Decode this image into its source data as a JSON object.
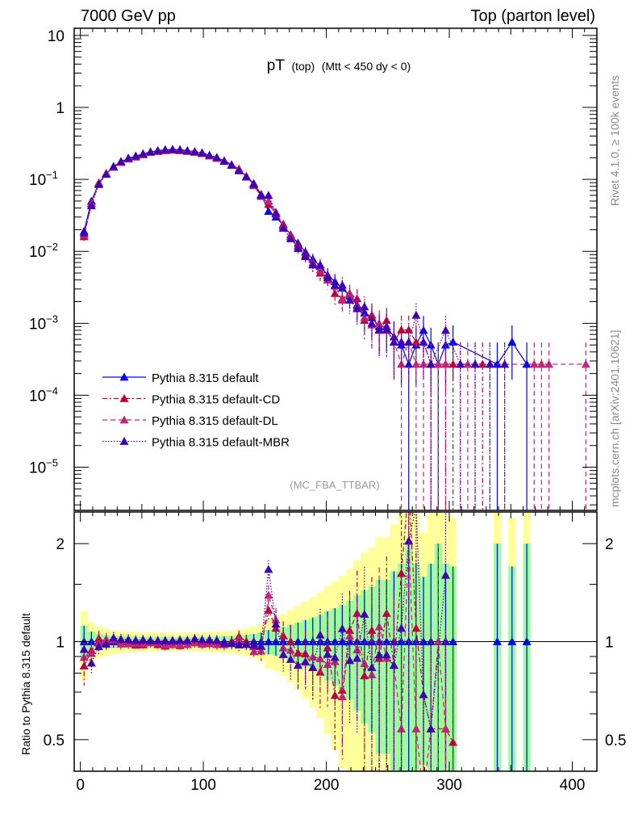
{
  "chart_data": {
    "type": "scatter",
    "header_left": "7000 GeV pp",
    "header_right": "Top (parton level)",
    "title_main": "pT",
    "title_sub": "(top)",
    "title_cut": "(Mtt < 450 dy < 0)",
    "analysis": "(MC_FBA_TTBAR)",
    "side_top": "Rivet 4.1.0, ≥ 100k events",
    "side_bottom": "mcplots.cern.ch [arXiv:2401.10621]",
    "ratio_ylabel": "Ratio to Pythia 8.315 default",
    "xlim": [
      -5,
      420
    ],
    "ylim_log": [
      -5.6,
      1.1
    ],
    "ratio_ylim": [
      0.4,
      2.5
    ],
    "x_ticks": [
      "0",
      "100",
      "200",
      "300",
      "400"
    ],
    "x_tick_values": [
      0,
      100,
      200,
      300,
      400
    ],
    "y_ticks": [
      {
        "v": 1,
        "b": "10",
        "e": ""
      },
      {
        "v": 0,
        "b": "1",
        "e": ""
      },
      {
        "v": -1,
        "b": "10",
        "e": "−1"
      },
      {
        "v": -2,
        "b": "10",
        "e": "−2"
      },
      {
        "v": -3,
        "b": "10",
        "e": "−3"
      },
      {
        "v": -4,
        "b": "10",
        "e": "−4"
      },
      {
        "v": -5,
        "b": "10",
        "e": "−5"
      }
    ],
    "ratio_ticks": [
      {
        "v": 2,
        "l": "2"
      },
      {
        "v": 1,
        "l": "1"
      },
      {
        "v": 0.5,
        "l": "0.5"
      }
    ],
    "single_event_level": 0.00027,
    "series": [
      {
        "name": "Pythia 8.315 default",
        "color": "#0000ee",
        "dash": "",
        "points": [
          [
            3,
            0.019
          ],
          [
            9,
            0.05
          ],
          [
            15,
            0.088
          ],
          [
            21,
            0.12
          ],
          [
            27,
            0.148
          ],
          [
            33,
            0.175
          ],
          [
            39,
            0.195
          ],
          [
            45,
            0.21
          ],
          [
            51,
            0.225
          ],
          [
            57,
            0.24
          ],
          [
            63,
            0.25
          ],
          [
            69,
            0.258
          ],
          [
            75,
            0.26
          ],
          [
            81,
            0.257
          ],
          [
            87,
            0.25
          ],
          [
            93,
            0.24
          ],
          [
            99,
            0.232
          ],
          [
            105,
            0.215
          ],
          [
            111,
            0.2
          ],
          [
            117,
            0.182
          ],
          [
            123,
            0.16
          ],
          [
            129,
            0.135
          ],
          [
            135,
            0.11
          ],
          [
            141,
            0.088
          ],
          [
            147,
            0.062
          ],
          [
            153,
            0.036
          ],
          [
            159,
            0.03
          ],
          [
            165,
            0.023
          ],
          [
            171,
            0.017
          ],
          [
            177,
            0.013
          ],
          [
            183,
            0.0098
          ],
          [
            189,
            0.0078
          ],
          [
            195,
            0.0062
          ],
          [
            201,
            0.0047
          ],
          [
            207,
            0.0038
          ],
          [
            213,
            0.0031
          ],
          [
            219,
            0.0024
          ],
          [
            225,
            0.0018
          ],
          [
            231,
            0.0014
          ],
          [
            237,
            0.0012
          ],
          [
            243,
            0.0009
          ],
          [
            249,
            0.0009
          ],
          [
            255,
            0.00065
          ],
          [
            261,
            0.0005
          ],
          [
            267,
            0.00027
          ],
          [
            273,
            0.0005
          ],
          [
            279,
            0.0008
          ],
          [
            285,
            0.0005
          ],
          [
            291,
            0.00027
          ],
          [
            297,
            0.0005
          ],
          [
            303,
            0.00055
          ],
          [
            339,
            0.00027
          ],
          [
            351,
            0.00055
          ],
          [
            363,
            0.00027
          ]
        ]
      },
      {
        "name": "Pythia 8.315 default-CD",
        "color": "#c0003c",
        "dash": "6,3,2,3",
        "points": [
          [
            3,
            0.016
          ],
          [
            9,
            0.047
          ],
          [
            15,
            0.09
          ],
          [
            21,
            0.12
          ],
          [
            27,
            0.15
          ],
          [
            33,
            0.175
          ],
          [
            39,
            0.195
          ],
          [
            45,
            0.205
          ],
          [
            51,
            0.22
          ],
          [
            57,
            0.24
          ],
          [
            63,
            0.245
          ],
          [
            69,
            0.25
          ],
          [
            75,
            0.255
          ],
          [
            81,
            0.25
          ],
          [
            87,
            0.25
          ],
          [
            93,
            0.24
          ],
          [
            99,
            0.23
          ],
          [
            105,
            0.215
          ],
          [
            111,
            0.2
          ],
          [
            117,
            0.18
          ],
          [
            123,
            0.16
          ],
          [
            129,
            0.14
          ],
          [
            135,
            0.11
          ],
          [
            141,
            0.085
          ],
          [
            147,
            0.06
          ],
          [
            153,
            0.045
          ],
          [
            159,
            0.033
          ],
          [
            165,
            0.024
          ],
          [
            171,
            0.017
          ],
          [
            177,
            0.012
          ],
          [
            183,
            0.009
          ],
          [
            189,
            0.0065
          ],
          [
            195,
            0.005
          ],
          [
            201,
            0.0045
          ],
          [
            207,
            0.0026
          ],
          [
            213,
            0.0022
          ],
          [
            219,
            0.0026
          ],
          [
            225,
            0.0022
          ],
          [
            231,
            0.0011
          ],
          [
            237,
            0.0013
          ],
          [
            243,
            0.0008
          ],
          [
            249,
            0.0011
          ],
          [
            255,
            0.00055
          ],
          [
            261,
            0.00081
          ],
          [
            267,
            0.00081
          ],
          [
            273,
            0.00055
          ],
          [
            279,
            0.00055
          ],
          [
            285,
            0.00027
          ],
          [
            297,
            0.00027
          ],
          [
            303,
            0.00027
          ],
          [
            327,
            0.00027
          ]
        ]
      },
      {
        "name": "Pythia 8.315 default-DL",
        "color": "#c0267a",
        "dash": "6,4",
        "points": [
          [
            3,
            0.017
          ],
          [
            9,
            0.046
          ],
          [
            15,
            0.087
          ],
          [
            21,
            0.122
          ],
          [
            27,
            0.15
          ],
          [
            33,
            0.172
          ],
          [
            39,
            0.192
          ],
          [
            45,
            0.208
          ],
          [
            51,
            0.222
          ],
          [
            57,
            0.238
          ],
          [
            63,
            0.248
          ],
          [
            69,
            0.252
          ],
          [
            75,
            0.255
          ],
          [
            81,
            0.252
          ],
          [
            87,
            0.245
          ],
          [
            93,
            0.238
          ],
          [
            99,
            0.228
          ],
          [
            105,
            0.212
          ],
          [
            111,
            0.196
          ],
          [
            117,
            0.178
          ],
          [
            123,
            0.158
          ],
          [
            129,
            0.137
          ],
          [
            135,
            0.108
          ],
          [
            141,
            0.082
          ],
          [
            147,
            0.058
          ],
          [
            153,
            0.05
          ],
          [
            159,
            0.035
          ],
          [
            165,
            0.022
          ],
          [
            171,
            0.016
          ],
          [
            177,
            0.011
          ],
          [
            183,
            0.0085
          ],
          [
            189,
            0.007
          ],
          [
            195,
            0.0055
          ],
          [
            201,
            0.004
          ],
          [
            207,
            0.0033
          ],
          [
            213,
            0.0021
          ],
          [
            219,
            0.0025
          ],
          [
            225,
            0.0017
          ],
          [
            231,
            0.0012
          ],
          [
            237,
            0.00095
          ],
          [
            243,
            0.001
          ],
          [
            249,
            0.0008
          ],
          [
            255,
            0.00055
          ],
          [
            261,
            0.00027
          ],
          [
            267,
            0.00055
          ],
          [
            273,
            0.00027
          ],
          [
            279,
            0.00027
          ],
          [
            285,
            0.00027
          ],
          [
            291,
            0.00027
          ],
          [
            297,
            0.00027
          ],
          [
            309,
            0.00027
          ],
          [
            315,
            0.00027
          ],
          [
            321,
            0.00027
          ],
          [
            333,
            0.00027
          ],
          [
            345,
            0.00027
          ],
          [
            369,
            0.00027
          ],
          [
            375,
            0.00027
          ],
          [
            381,
            0.00027
          ],
          [
            411,
            0.00027
          ]
        ]
      },
      {
        "name": "Pythia 8.315 default-MBR",
        "color": "#3f00b4",
        "dash": "1.5,2",
        "points": [
          [
            3,
            0.018
          ],
          [
            9,
            0.043
          ],
          [
            15,
            0.085
          ],
          [
            21,
            0.118
          ],
          [
            27,
            0.152
          ],
          [
            33,
            0.178
          ],
          [
            39,
            0.198
          ],
          [
            45,
            0.212
          ],
          [
            51,
            0.228
          ],
          [
            57,
            0.242
          ],
          [
            63,
            0.252
          ],
          [
            69,
            0.26
          ],
          [
            75,
            0.262
          ],
          [
            81,
            0.26
          ],
          [
            87,
            0.252
          ],
          [
            93,
            0.245
          ],
          [
            99,
            0.235
          ],
          [
            105,
            0.218
          ],
          [
            111,
            0.202
          ],
          [
            117,
            0.18
          ],
          [
            123,
            0.158
          ],
          [
            129,
            0.132
          ],
          [
            135,
            0.108
          ],
          [
            141,
            0.086
          ],
          [
            147,
            0.06
          ],
          [
            153,
            0.06
          ],
          [
            159,
            0.034
          ],
          [
            165,
            0.021
          ],
          [
            171,
            0.015
          ],
          [
            177,
            0.011
          ],
          [
            183,
            0.0085
          ],
          [
            189,
            0.0065
          ],
          [
            195,
            0.0065
          ],
          [
            201,
            0.0043
          ],
          [
            207,
            0.0034
          ],
          [
            213,
            0.0034
          ],
          [
            219,
            0.0021
          ],
          [
            225,
            0.0016
          ],
          [
            231,
            0.0017
          ],
          [
            237,
            0.001
          ],
          [
            243,
            0.00082
          ],
          [
            249,
            0.00082
          ],
          [
            255,
            0.00055
          ],
          [
            261,
            0.00055
          ],
          [
            267,
            0.00055
          ],
          [
            273,
            0.0013
          ],
          [
            279,
            0.00055
          ],
          [
            285,
            0.00027
          ],
          [
            297,
            0.0008
          ],
          [
            309,
            0.00027
          ],
          [
            321,
            0.00027
          ],
          [
            333,
            0.00027
          ],
          [
            345,
            0.00027
          ]
        ]
      }
    ]
  }
}
